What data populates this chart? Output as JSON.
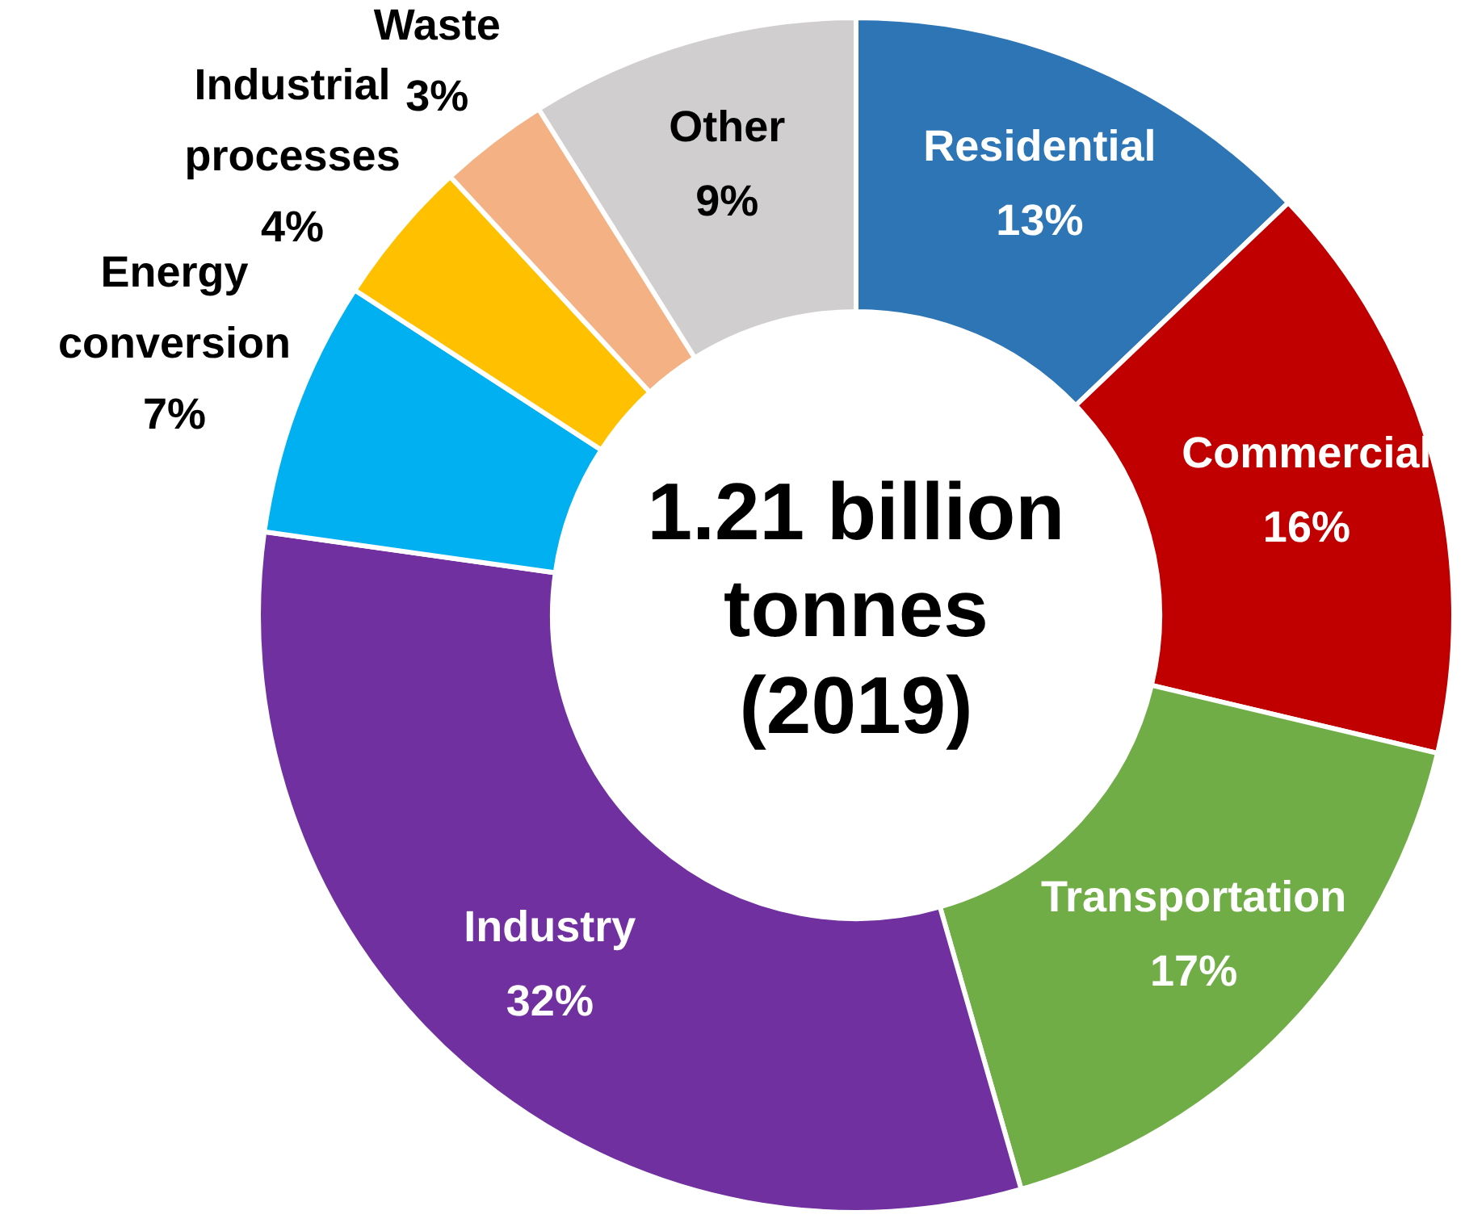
{
  "chart_data": {
    "type": "donut",
    "title": "1.21 billion tonnes (2019)",
    "categories": [
      "Residential",
      "Commercial",
      "Transportation",
      "Industry",
      "Energy conversion",
      "Industrial processes",
      "Waste",
      "Other"
    ],
    "values": [
      13,
      16,
      17,
      32,
      7,
      4,
      3,
      9
    ],
    "value_labels": [
      "13%",
      "16%",
      "17%",
      "32%",
      "7%",
      "4%",
      "3%",
      "9%"
    ],
    "colors": [
      "#2e75b6",
      "#c00000",
      "#70ad47",
      "#7030a0",
      "#00b0f0",
      "#ffc000",
      "#f4b183",
      "#d0cece"
    ],
    "legend": false
  }
}
